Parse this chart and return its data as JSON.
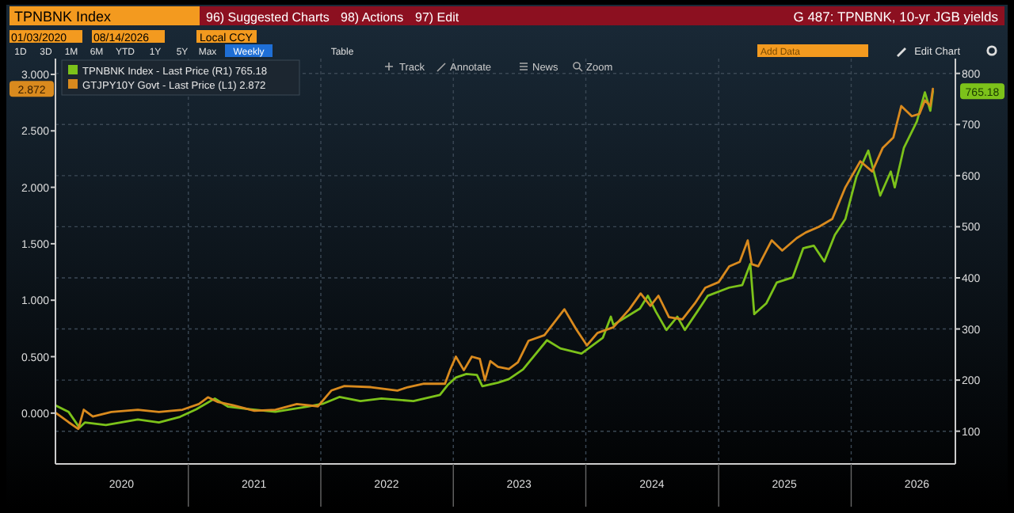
{
  "chart_data": {
    "type": "line",
    "title": "TPNBNK Index",
    "subtitle": "G 487: TPNBNK, 10-yr JGB yields",
    "annotations": [
      "96) Suggested Charts",
      "98) Actions",
      "97) Edit",
      "01/03/2020",
      "08/14/2026",
      "Local CCY",
      "1D",
      "3D",
      "1M",
      "6M",
      "YTD",
      "1Y",
      "5Y",
      "Max",
      "Weekly",
      "Table",
      "Add Data",
      "Edit Chart",
      "Track",
      "Annotate",
      "News",
      "Zoom",
      "2.872",
      "765.18"
    ],
    "xlim": [
      "2020-01-01",
      "2026-10-15"
    ],
    "xticks": [
      {
        "value": "2020-07-01",
        "label": "2020"
      },
      {
        "value": "2021-01-01",
        "label": null
      },
      {
        "value": "2021-07-01",
        "label": "2021"
      },
      {
        "value": "2022-01-01",
        "label": null
      },
      {
        "value": "2022-07-01",
        "label": "2022"
      },
      {
        "value": "2023-01-01",
        "label": null
      },
      {
        "value": "2023-07-01",
        "label": "2023"
      },
      {
        "value": "2024-01-01",
        "label": null
      },
      {
        "value": "2024-07-01",
        "label": "2024"
      },
      {
        "value": "2025-01-01",
        "label": null
      },
      {
        "value": "2025-07-01",
        "label": "2025"
      },
      {
        "value": "2026-01-01",
        "label": null
      },
      {
        "value": "2026-07-01",
        "label": "2026"
      }
    ],
    "ylim": [
      -0.45,
      3.14
    ],
    "yticks": [
      {
        "value": 0,
        "label": "0.000"
      },
      {
        "value": 0.5,
        "label": "0.500"
      },
      {
        "value": 1,
        "label": "1.000"
      },
      {
        "value": 1.5,
        "label": "1.500"
      },
      {
        "value": 2,
        "label": "2.000"
      },
      {
        "value": 2.5,
        "label": "2.500"
      },
      {
        "value": 3,
        "label": "3.000"
      }
    ],
    "y2lim": [
      36,
      829
    ],
    "y2ticks": [
      100,
      200,
      300,
      400,
      500,
      600,
      700,
      800
    ],
    "grid": true,
    "legend": "top left",
    "series": [
      {
        "name": "TPNBNK Index - Last Price (R1) 765.18",
        "color": "#7cc21a",
        "axis": "y2",
        "x": [
          "2020-01-03",
          "2020-02-06",
          "2020-03-07",
          "2020-03-22",
          "2020-05-19",
          "2020-08-15",
          "2020-10-12",
          "2020-12-09",
          "2021-01-23",
          "2021-03-15",
          "2021-04-20",
          "2021-06-18",
          "2021-08-29",
          "2021-11-25",
          "2022-01-08",
          "2022-02-21",
          "2022-04-20",
          "2022-06-17",
          "2022-09-13",
          "2022-11-25",
          "2022-12-16",
          "2023-01-08",
          "2023-02-06",
          "2023-03-07",
          "2023-03-22",
          "2023-05-04",
          "2023-06-03",
          "2023-07-12",
          "2023-09-16",
          "2023-10-23",
          "2023-12-20",
          "2024-02-17",
          "2024-03-10",
          "2024-03-17",
          "2024-05-29",
          "2024-06-20",
          "2024-07-12",
          "2024-08-10",
          "2024-09-09",
          "2024-09-30",
          "2024-11-03",
          "2024-12-02",
          "2025-01-30",
          "2025-03-07",
          "2025-03-29",
          "2025-04-09",
          "2025-05-12",
          "2025-06-10",
          "2025-07-24",
          "2025-08-22",
          "2025-09-20",
          "2025-10-19",
          "2025-11-17",
          "2025-12-16",
          "2026-01-15",
          "2026-02-17",
          "2026-03-22",
          "2026-04-20",
          "2026-05-01",
          "2026-05-26",
          "2026-07-01",
          "2026-07-23",
          "2026-08-07",
          "2026-08-14"
        ],
        "values": [
          150,
          138,
          107,
          117,
          112,
          123,
          117,
          128,
          143,
          164,
          148,
          143,
          138,
          148,
          154,
          167,
          159,
          164,
          159,
          171,
          190,
          205,
          212,
          210,
          188,
          195,
          202,
          221,
          278,
          262,
          252,
          283,
          324,
          308,
          340,
          365,
          334,
          298,
          324,
          298,
          334,
          365,
          381,
          386,
          427,
          329,
          350,
          391,
          401,
          458,
          463,
          432,
          484,
          515,
          597,
          649,
          561,
          608,
          577,
          654,
          706,
          763,
          727,
          765.18
        ]
      },
      {
        "name": "GTJPY10Y Govt - Last Price (L1) 2.872",
        "color": "#d98a1e",
        "x": [
          "2020-01-03",
          "2020-02-06",
          "2020-03-04",
          "2020-03-19",
          "2020-04-13",
          "2020-06-03",
          "2020-08-15",
          "2020-10-12",
          "2020-12-16",
          "2021-01-30",
          "2021-02-24",
          "2021-03-22",
          "2021-05-04",
          "2021-07-02",
          "2021-08-29",
          "2021-10-27",
          "2021-12-24",
          "2022-01-30",
          "2022-03-07",
          "2022-05-19",
          "2022-07-31",
          "2022-08-29",
          "2022-10-12",
          "2022-12-09",
          "2022-12-24",
          "2023-01-08",
          "2023-01-30",
          "2023-02-21",
          "2023-03-15",
          "2023-03-29",
          "2023-04-13",
          "2023-05-04",
          "2023-06-03",
          "2023-06-28",
          "2023-07-27",
          "2023-09-09",
          "2023-11-03",
          "2023-12-06",
          "2024-01-04",
          "2024-02-02",
          "2024-03-17",
          "2024-04-30",
          "2024-05-31",
          "2024-06-27",
          "2024-07-19",
          "2024-08-17",
          "2024-09-23",
          "2024-10-27",
          "2024-11-25",
          "2025-01-01",
          "2025-01-30",
          "2025-02-28",
          "2025-03-22",
          "2025-04-02",
          "2025-04-20",
          "2025-05-27",
          "2025-06-25",
          "2025-08-04",
          "2025-08-29",
          "2025-10-04",
          "2025-11-10",
          "2025-12-16",
          "2026-01-26",
          "2026-02-28",
          "2026-03-29",
          "2026-04-27",
          "2026-05-19",
          "2026-06-17",
          "2026-07-08",
          "2026-07-23",
          "2026-08-07",
          "2026-08-14"
        ],
        "values": [
          0.0,
          -0.08,
          -0.14,
          0.03,
          -0.03,
          0.01,
          0.03,
          0.01,
          0.03,
          0.08,
          0.14,
          0.1,
          0.07,
          0.02,
          0.03,
          0.08,
          0.06,
          0.2,
          0.24,
          0.23,
          0.2,
          0.23,
          0.26,
          0.26,
          0.39,
          0.5,
          0.38,
          0.5,
          0.48,
          0.29,
          0.46,
          0.41,
          0.39,
          0.45,
          0.64,
          0.69,
          0.92,
          0.74,
          0.6,
          0.71,
          0.76,
          0.92,
          1.06,
          0.95,
          1.04,
          0.85,
          0.83,
          0.97,
          1.11,
          1.16,
          1.3,
          1.34,
          1.53,
          1.32,
          1.3,
          1.53,
          1.44,
          1.55,
          1.6,
          1.65,
          1.72,
          2.0,
          2.23,
          2.14,
          2.35,
          2.44,
          2.72,
          2.63,
          2.65,
          2.77,
          2.72,
          2.872
        ]
      }
    ]
  }
}
